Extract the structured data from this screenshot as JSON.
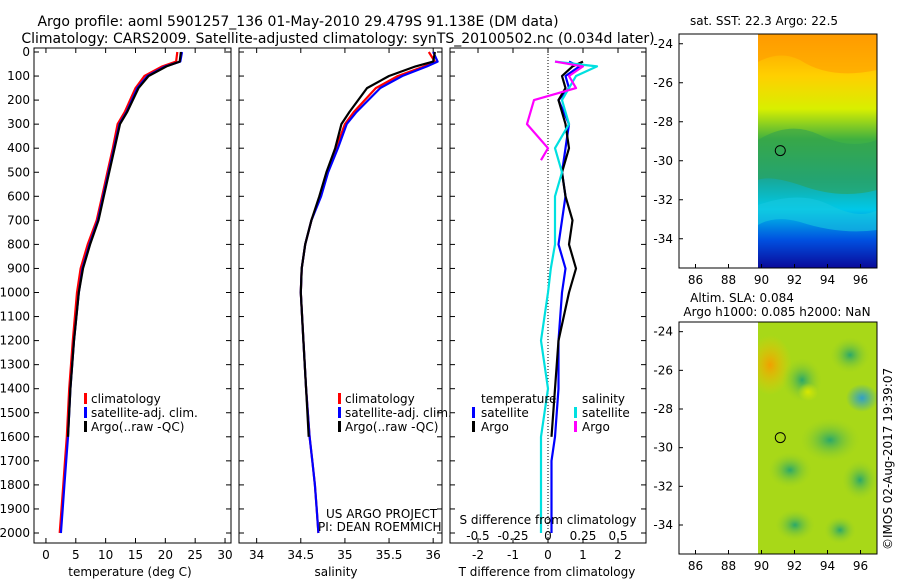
{
  "header": {
    "title_line1": "Argo profile: aoml 5901257_136 01-May-2010 29.479S 91.138E (DM data)",
    "title_line2": "Climatology: CARS2009. Satellite-adjusted climatology: synTS_20100502.nc (0.034d later)"
  },
  "credit": {
    "project": "US ARGO PROJECT",
    "pi": "PI: DEAN ROEMMICH"
  },
  "side_label": "©IMOS 02-Aug-2017 19:39:07",
  "colors": {
    "climatology": "#ff0000",
    "satellite": "#0000ff",
    "argo": "#000000",
    "argo_s": "#ff00ff",
    "sat_s": "#00e0e0"
  },
  "chart_data": [
    {
      "type": "line",
      "id": "temperature",
      "xlabel": "temperature (deg C)",
      "xlim": [
        -2,
        31
      ],
      "ylim": [
        0,
        2060
      ],
      "yticks": [
        0,
        100,
        200,
        300,
        400,
        500,
        600,
        700,
        800,
        900,
        1000,
        1100,
        1200,
        1300,
        1400,
        1500,
        1600,
        1700,
        1800,
        1900,
        2000
      ],
      "xticks": [
        0,
        5,
        10,
        15,
        20,
        25,
        30
      ],
      "legend": [
        "climatology",
        "satellite-adj. clim.",
        "Argo(..raw -QC)"
      ],
      "series": [
        {
          "name": "climatology",
          "color": "#ff0000",
          "x": [
            22.0,
            21.8,
            19.5,
            16.5,
            15.0,
            13.2,
            12.0,
            11.2,
            10.3,
            9.4,
            8.5,
            7.0,
            5.8,
            5.2,
            4.5,
            3.9,
            3.5,
            3.2,
            2.9,
            2.6,
            2.3
          ],
          "depth": [
            0,
            40,
            60,
            100,
            150,
            250,
            300,
            400,
            500,
            600,
            700,
            800,
            900,
            1000,
            1200,
            1400,
            1600,
            1700,
            1800,
            1900,
            2000
          ]
        },
        {
          "name": "satellite",
          "color": "#0000ff",
          "x": [
            22.8,
            22.5,
            20.0,
            17.0,
            15.3,
            13.5,
            12.3,
            11.4,
            10.5,
            9.6,
            8.7,
            7.3,
            6.1,
            5.5,
            4.7,
            4.1,
            3.7,
            3.4,
            3.1,
            2.8,
            2.5
          ],
          "depth": [
            0,
            40,
            60,
            100,
            150,
            250,
            300,
            400,
            500,
            600,
            700,
            800,
            900,
            1000,
            1200,
            1400,
            1600,
            1700,
            1800,
            1900,
            2000
          ]
        },
        {
          "name": "argo",
          "color": "#000000",
          "x": [
            22.6,
            22.4,
            20.2,
            17.2,
            15.5,
            13.6,
            12.4,
            11.5,
            10.6,
            9.7,
            8.8,
            7.4,
            6.2,
            5.5,
            4.7,
            4.1,
            3.7
          ],
          "depth": [
            0,
            40,
            60,
            100,
            150,
            250,
            300,
            400,
            500,
            600,
            700,
            800,
            900,
            1000,
            1200,
            1400,
            1600
          ]
        }
      ]
    },
    {
      "type": "line",
      "id": "salinity",
      "xlabel": "salinity",
      "xlim": [
        33.8,
        36.1
      ],
      "ylim": [
        0,
        2060
      ],
      "xticks": [
        34,
        34.5,
        35,
        35.5,
        36
      ],
      "legend": [
        "climatology",
        "satellite-adj. clim.",
        "Argo(..raw -QC)"
      ],
      "series": [
        {
          "name": "climatology",
          "color": "#ff0000",
          "x": [
            35.95,
            36.02,
            35.9,
            35.6,
            35.35,
            35.1,
            35.0,
            34.9,
            34.8,
            34.72,
            34.62,
            34.55,
            34.51,
            34.5,
            34.53,
            34.56,
            34.6,
            34.63,
            34.66,
            34.68,
            34.7
          ],
          "depth": [
            0,
            40,
            60,
            100,
            150,
            250,
            300,
            400,
            500,
            600,
            700,
            800,
            900,
            1000,
            1200,
            1400,
            1600,
            1700,
            1800,
            1900,
            2000
          ]
        },
        {
          "name": "satellite",
          "color": "#0000ff",
          "x": [
            36.0,
            36.05,
            35.93,
            35.65,
            35.4,
            35.13,
            35.02,
            34.92,
            34.81,
            34.73,
            34.62,
            34.55,
            34.51,
            34.5,
            34.53,
            34.56,
            34.6,
            34.63,
            34.66,
            34.68,
            34.7
          ],
          "depth": [
            0,
            40,
            60,
            100,
            150,
            250,
            300,
            400,
            500,
            600,
            700,
            800,
            900,
            1000,
            1200,
            1400,
            1600,
            1700,
            1800,
            1900,
            2000
          ]
        },
        {
          "name": "argo",
          "color": "#000000",
          "x": [
            36.02,
            36.0,
            35.8,
            35.5,
            35.25,
            35.05,
            34.96,
            34.89,
            34.79,
            34.71,
            34.62,
            34.55,
            34.51,
            34.5,
            34.53,
            34.56,
            34.59
          ],
          "depth": [
            0,
            40,
            60,
            100,
            150,
            250,
            300,
            400,
            500,
            600,
            700,
            800,
            900,
            1000,
            1200,
            1400,
            1600
          ]
        }
      ]
    },
    {
      "type": "line",
      "id": "difference",
      "xlabel": "T difference from climatology",
      "xlabel_top": "S difference from climatology",
      "xlim": [
        -2.8,
        2.8
      ],
      "ylim": [
        0,
        2060
      ],
      "xticks": [
        -2,
        -1,
        0,
        1,
        2
      ],
      "xticks_top": [
        "-0.5",
        "-0.25",
        "0",
        "0.25",
        "0.5"
      ],
      "legend_headers": [
        "temperature",
        "salinity"
      ],
      "legend": [
        "satellite",
        "Argo",
        "satellite",
        "Argo"
      ],
      "series": [
        {
          "name": "satellite T",
          "color": "#0000ff",
          "x": [
            0.6,
            0.9,
            0.5,
            0.6,
            0.3,
            0.6,
            0.5,
            0.4,
            0.5,
            0.4,
            0.3,
            0.5,
            0.4,
            0.3,
            0.3,
            0.2,
            0.1,
            0.1,
            0.1
          ],
          "depth": [
            40,
            60,
            100,
            150,
            200,
            300,
            400,
            500,
            600,
            700,
            800,
            900,
            1000,
            1200,
            1400,
            1600,
            1700,
            1800,
            2000
          ]
        },
        {
          "name": "argo T",
          "color": "#000000",
          "x": [
            1.0,
            0.7,
            0.4,
            0.5,
            0.3,
            0.5,
            0.6,
            0.4,
            0.5,
            0.7,
            0.6,
            0.8,
            0.6,
            0.3,
            0.2,
            0.1
          ],
          "depth": [
            40,
            60,
            100,
            150,
            200,
            300,
            400,
            500,
            600,
            700,
            800,
            900,
            1000,
            1200,
            1400,
            1600
          ]
        },
        {
          "name": "satellite S",
          "color": "#00e0e0",
          "x": [
            0.05,
            0.35,
            0.2,
            0.15,
            0.1,
            0.15,
            0.05,
            0.1,
            0.05,
            0.05,
            0.05,
            0.02,
            0.0,
            -0.05,
            0.0,
            -0.05,
            -0.05
          ],
          "depth": [
            40,
            60,
            100,
            150,
            200,
            300,
            400,
            500,
            600,
            700,
            800,
            900,
            1000,
            1200,
            1400,
            1600,
            2000
          ]
        },
        {
          "name": "argo S",
          "color": "#ff00ff",
          "x": [
            0.05,
            0.25,
            0.15,
            0.2,
            -0.1,
            -0.15,
            0.0,
            -0.05
          ],
          "depth": [
            40,
            60,
            100,
            150,
            200,
            300,
            400,
            450
          ]
        }
      ]
    },
    {
      "type": "heatmap",
      "id": "sst_map",
      "title": "sat. SST: 22.3 Argo: 22.5",
      "xticks": [
        86,
        88,
        90,
        92,
        94,
        96
      ],
      "yticks": [
        -24,
        -26,
        -28,
        -30,
        -32,
        -34
      ],
      "xlim": [
        85,
        97
      ],
      "ylim": [
        -35.5,
        -23.5
      ],
      "data_lon_start": 90,
      "marker": {
        "lon": 91.138,
        "lat": -29.479
      }
    },
    {
      "type": "heatmap",
      "id": "sla_map",
      "title_line1": "Altim. SLA: 0.084",
      "title_line2": "Argo h1000: 0.085 h2000: NaN",
      "xticks": [
        86,
        88,
        90,
        92,
        94,
        96
      ],
      "yticks": [
        -24,
        -26,
        -28,
        -30,
        -32,
        -34
      ],
      "xlim": [
        85,
        97
      ],
      "ylim": [
        -35.5,
        -23.5
      ],
      "data_lon_start": 90,
      "marker": {
        "lon": 91.138,
        "lat": -29.479
      }
    }
  ]
}
